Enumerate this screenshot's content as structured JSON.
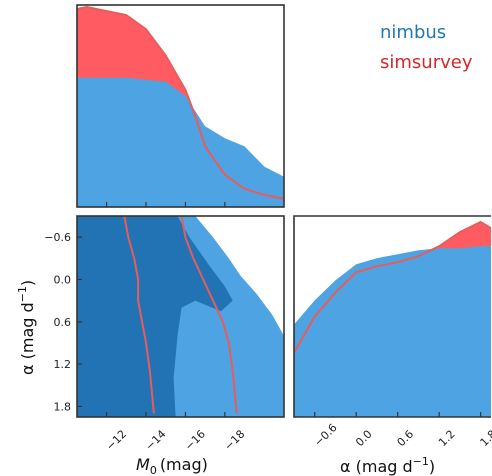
{
  "chart_data": {
    "type": "area",
    "legend": {
      "placement": "top-right",
      "items": [
        {
          "label": "nimbus",
          "color": "#1f77b4"
        },
        {
          "label": "simsurvey",
          "color": "#d62728"
        }
      ]
    },
    "colors": {
      "nimbus_fill": "#4ea3e2",
      "nimbus_fill_dark": "#2173b3",
      "simsurvey_fill": "#ff5b63",
      "simsurvey_line": "#e85c5c"
    },
    "axes": {
      "M0": {
        "label_main": "M",
        "label_sub": "0",
        "label_unit": "(mag)",
        "range": [
          -10.5,
          -21.0
        ],
        "ticks": [
          "−12",
          "−14",
          "−16",
          "−18"
        ],
        "tick_values": [
          -12,
          -14,
          -16,
          -18
        ]
      },
      "alpha": {
        "label_main": "α (mag d",
        "label_sup": "−1",
        "label_end": ")",
        "range": [
          -0.9,
          1.95
        ],
        "ticks": [
          "−0.6",
          "0.0",
          "0.6",
          "1.2",
          "1.8"
        ],
        "tick_values": [
          -0.6,
          0.0,
          0.6,
          1.2,
          1.8
        ],
        "bottom_ticks": [
          "−0.6",
          "0.0",
          "0.6",
          "1.2",
          "1.8"
        ]
      }
    },
    "marginal_M0": {
      "nimbus": {
        "x": [
          -10.5,
          -12,
          -13,
          -14,
          -15,
          -16,
          -17,
          -18,
          -19,
          -20,
          -21
        ],
        "y": [
          0.64,
          0.64,
          0.64,
          0.63,
          0.62,
          0.55,
          0.4,
          0.34,
          0.3,
          0.2,
          0.15
        ]
      },
      "simsurvey": {
        "x": [
          -10.5,
          -11,
          -12,
          -13,
          -14,
          -15,
          -16,
          -16.5,
          -17,
          -18,
          -19,
          -20,
          -21
        ],
        "y": [
          0.98,
          0.99,
          0.97,
          0.95,
          0.88,
          0.75,
          0.58,
          0.45,
          0.3,
          0.16,
          0.09,
          0.06,
          0.04
        ]
      }
    },
    "marginal_alpha": {
      "nimbus": {
        "x": [
          -0.9,
          -0.6,
          -0.3,
          0.0,
          0.3,
          0.6,
          0.9,
          1.2,
          1.5,
          1.8,
          1.95
        ],
        "y": [
          0.46,
          0.58,
          0.68,
          0.76,
          0.79,
          0.81,
          0.83,
          0.84,
          0.84,
          0.85,
          0.85
        ]
      },
      "simsurvey": {
        "x": [
          -0.9,
          -0.6,
          -0.3,
          0.0,
          0.3,
          0.6,
          0.9,
          1.2,
          1.5,
          1.8,
          1.95
        ],
        "y": [
          0.32,
          0.5,
          0.62,
          0.72,
          0.75,
          0.77,
          0.8,
          0.85,
          0.92,
          0.97,
          0.94
        ]
      }
    },
    "joint": {
      "nimbus_outer": [
        [
          -10.5,
          -0.9
        ],
        [
          -16.5,
          -0.9
        ],
        [
          -17.4,
          -0.6
        ],
        [
          -18.2,
          -0.3
        ],
        [
          -18.8,
          -0.05
        ],
        [
          -19.6,
          0.2
        ],
        [
          -20.4,
          0.5
        ],
        [
          -21.0,
          0.8
        ],
        [
          -21.0,
          1.95
        ],
        [
          -10.5,
          1.95
        ]
      ],
      "nimbus_inner": [
        [
          -10.5,
          -0.9
        ],
        [
          -15.6,
          -0.9
        ],
        [
          -16.2,
          -0.6
        ],
        [
          -17.2,
          -0.2
        ],
        [
          -18.0,
          0.1
        ],
        [
          -18.4,
          0.3
        ],
        [
          -17.8,
          0.45
        ],
        [
          -16.5,
          0.3
        ],
        [
          -15.8,
          0.4
        ],
        [
          -15.6,
          0.8
        ],
        [
          -15.4,
          1.4
        ],
        [
          -15.5,
          1.95
        ],
        [
          -10.5,
          1.95
        ]
      ],
      "simsurvey_contours": [
        {
          "x": [
            -12.9,
            -13.1,
            -13.4,
            -13.6,
            -13.6,
            -13.8,
            -14.0,
            -14.2,
            -14.4
          ],
          "y": [
            -0.9,
            -0.6,
            -0.3,
            0.0,
            0.3,
            0.6,
            0.9,
            1.3,
            1.9
          ]
        },
        {
          "x": [
            -15.8,
            -16.0,
            -16.4,
            -16.9,
            -17.4,
            -17.9,
            -18.2,
            -18.4,
            -18.6
          ],
          "y": [
            -0.9,
            -0.6,
            -0.3,
            0.0,
            0.3,
            0.6,
            0.9,
            1.3,
            1.9
          ]
        }
      ]
    },
    "grid": false
  }
}
